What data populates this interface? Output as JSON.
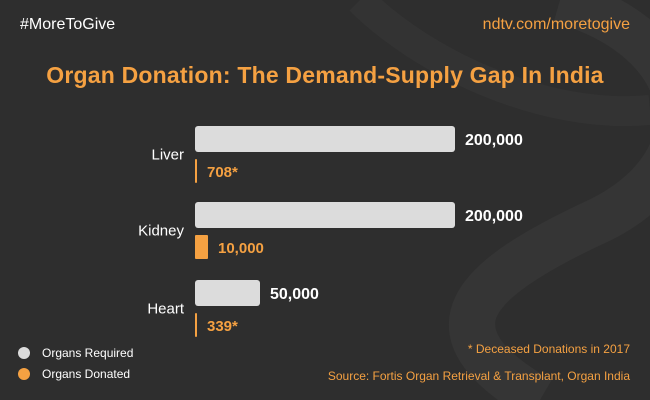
{
  "header": {
    "hashtag": "#MoreToGive",
    "url": "ndtv.com/moretogive",
    "title": "Organ Donation: The Demand-Supply Gap In India"
  },
  "chart_data": {
    "type": "bar",
    "orientation": "horizontal",
    "categories": [
      "Liver",
      "Kidney",
      "Heart"
    ],
    "series": [
      {
        "name": "Organs Required",
        "values": [
          200000,
          200000,
          50000
        ],
        "labels": [
          "200,000",
          "200,000",
          "50,000"
        ],
        "color": "#dcdcdc"
      },
      {
        "name": "Organs Donated",
        "values": [
          708,
          10000,
          339
        ],
        "labels": [
          "708*",
          "10,000",
          "339*"
        ],
        "color": "#f5a142"
      }
    ],
    "grid": false,
    "legend_position": "bottom-left"
  },
  "footnote": "* Deceased Donations in 2017",
  "source": "Source: Fortis Organ Retrieval & Transplant, Organ India",
  "colors": {
    "background": "#2e2e2e",
    "accent": "#f5a142",
    "required": "#dcdcdc",
    "text": "#ffffff"
  }
}
